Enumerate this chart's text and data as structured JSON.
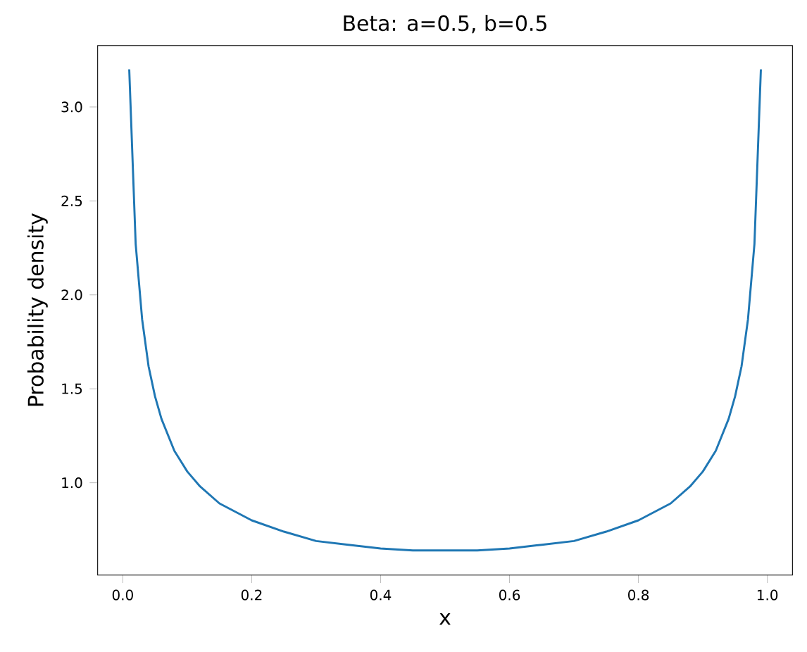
{
  "chart_data": {
    "type": "line",
    "title": "Beta: a=0.5, b=0.5",
    "xlabel": "x",
    "ylabel": "Probability density",
    "x": [
      0.01,
      0.02,
      0.03,
      0.04,
      0.05,
      0.06,
      0.08,
      0.1,
      0.12,
      0.15,
      0.2,
      0.25,
      0.3,
      0.35,
      0.4,
      0.45,
      0.5,
      0.55,
      0.6,
      0.65,
      0.7,
      0.75,
      0.8,
      0.85,
      0.88,
      0.9,
      0.92,
      0.94,
      0.95,
      0.96,
      0.97,
      0.98,
      0.99
    ],
    "series": [
      {
        "color": "#1f77b4",
        "values": [
          3.2,
          2.27,
          1.87,
          1.62,
          1.46,
          1.34,
          1.17,
          1.06,
          0.98,
          0.89,
          0.8,
          0.74,
          0.69,
          0.67,
          0.65,
          0.64,
          0.64,
          0.64,
          0.65,
          0.67,
          0.69,
          0.74,
          0.8,
          0.89,
          0.98,
          1.06,
          1.17,
          1.34,
          1.46,
          1.62,
          1.87,
          2.27,
          3.2
        ]
      }
    ],
    "xlim": [
      -0.039,
      1.039
    ],
    "ylim": [
      0.509,
      3.327
    ],
    "xticks": [
      {
        "value": 0,
        "label": "0.0"
      },
      0.2,
      0.4,
      0.6,
      0.8,
      {
        "value": 1,
        "label": "1.0"
      }
    ],
    "yticks": [
      {
        "value": 1,
        "label": "1.0"
      },
      1.5,
      {
        "value": 2,
        "label": "2.0"
      },
      2.5,
      {
        "value": 3,
        "label": "3.0"
      }
    ],
    "grid": false,
    "marker": "none",
    "line_style": "solid"
  }
}
